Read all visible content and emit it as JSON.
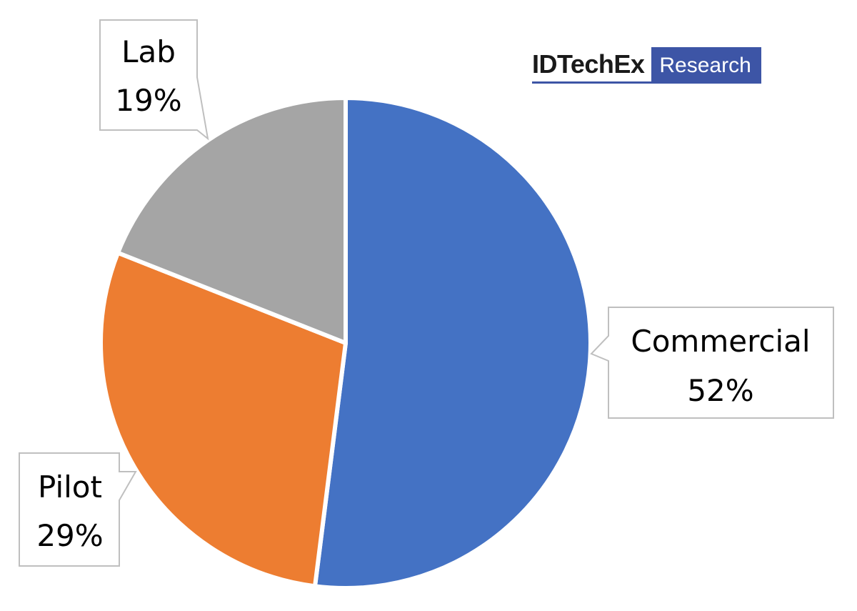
{
  "chart_data": {
    "type": "pie",
    "slices": [
      {
        "label": "Commercial",
        "value": 52,
        "display": "52%",
        "color": "#4472c4"
      },
      {
        "label": "Pilot",
        "value": 29,
        "display": "29%",
        "color": "#ed7d31"
      },
      {
        "label": "Lab",
        "value": 19,
        "display": "19%",
        "color": "#a5a5a5"
      }
    ],
    "start": "12 o'clock",
    "direction": "clockwise",
    "labels": "callouts"
  },
  "logo": {
    "name": "IDTechEx",
    "tag": "Research",
    "accent": "#3d55a6"
  }
}
